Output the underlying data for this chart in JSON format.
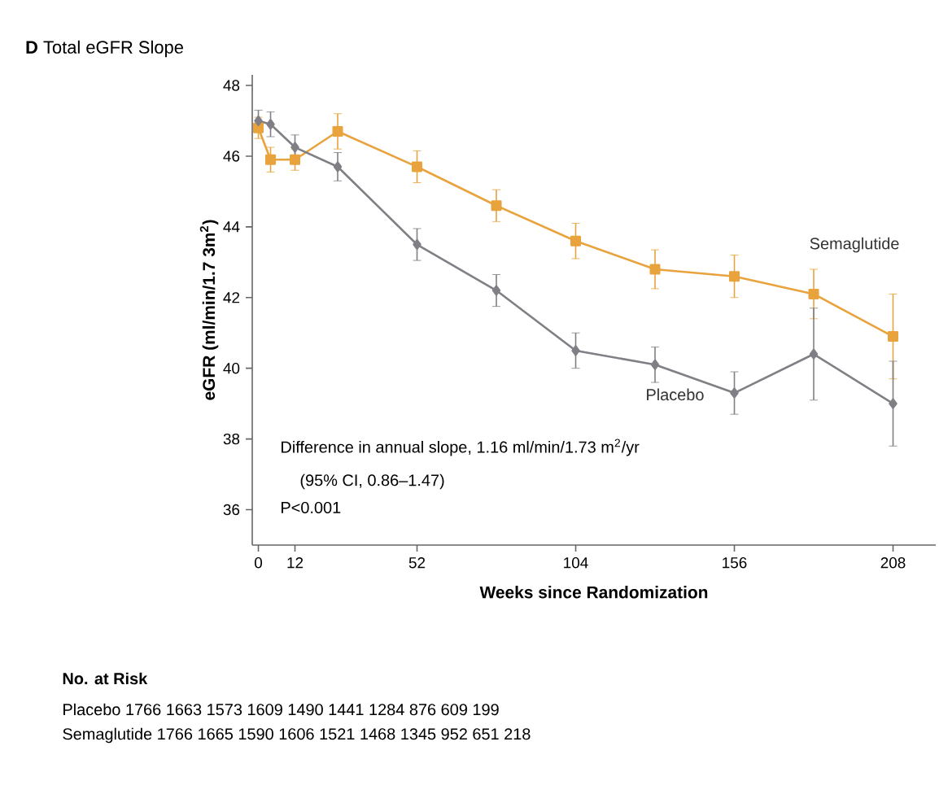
{
  "chart_data": {
    "type": "line",
    "title": "**D** Total eGFR Slope",
    "xlabel": "Weeks since Randomization",
    "ylabel": "eGFR (ml/min/1.7 3m$^{2}$)",
    "x": [
      0,
      4,
      12,
      26,
      52,
      78,
      104,
      130,
      156,
      182,
      208
    ],
    "xlim": [
      -2,
      222
    ],
    "xticks": [
      0,
      12,
      52,
      104,
      156,
      208
    ],
    "ylim": [
      35,
      48.3
    ],
    "yticks": [
      36,
      38,
      40,
      42,
      44,
      46,
      48
    ],
    "legend": false,
    "line_style": "solid",
    "series": [
      {
        "name": "Semaglutide",
        "color": "#e8a33d",
        "marker": "square",
        "values": [
          46.8,
          45.9,
          45.9,
          46.7,
          45.7,
          44.6,
          43.6,
          42.8,
          42.6,
          42.1,
          40.9
        ],
        "errors": [
          0.3,
          0.35,
          0.3,
          0.5,
          0.45,
          0.45,
          0.5,
          0.55,
          0.6,
          0.7,
          1.2
        ]
      },
      {
        "name": "Placebo",
        "color": "#7f7f85",
        "marker": "diamond",
        "values": [
          47.0,
          46.9,
          46.25,
          45.7,
          43.5,
          42.2,
          40.5,
          40.1,
          39.3,
          40.4,
          39.0
        ],
        "errors": [
          0.3,
          0.35,
          0.35,
          0.4,
          0.45,
          0.45,
          0.5,
          0.5,
          0.6,
          1.3,
          1.2
        ]
      }
    ],
    "annotations": [
      "Difference in annual slope, 1.16 ml/min/1.73 m$^{2}$/yr",
      "(95% CI, 0.86–1.47)",
      "P<0.001",
      "**No. at Risk**",
      "Placebo 1766 1663 1573 1609 1490 1441 1284 876 609 199",
      "Semaglutide 1766 1665 1590 1606 1521 1468 1345 952 651 218"
    ]
  }
}
